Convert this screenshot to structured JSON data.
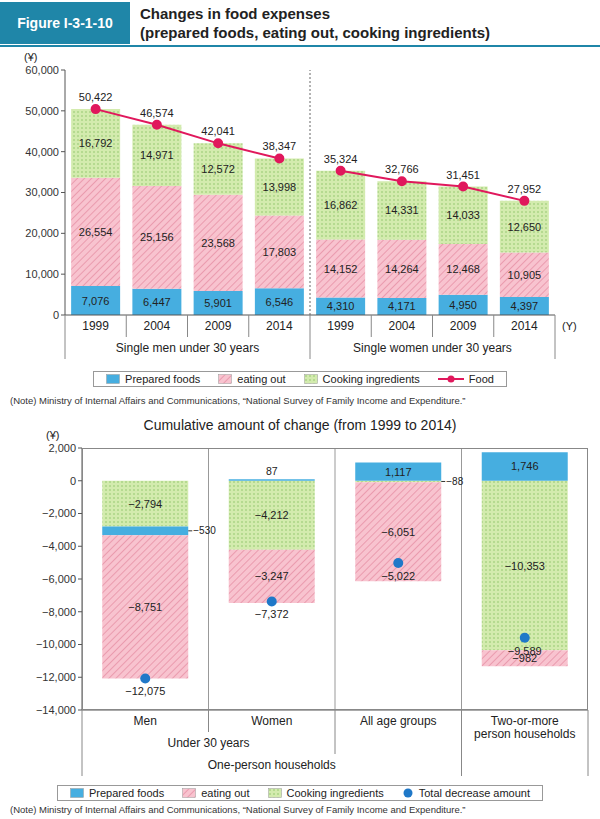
{
  "figure": {
    "label": "Figure I-3-1-10",
    "title": [
      "Changes in food expenses",
      "(prepared foods, eating out, cooking ingredients)"
    ]
  },
  "chart_data": [
    {
      "type": "bar",
      "stacked": true,
      "data_labels": true,
      "y_label": "(¥)",
      "x_label": "(Y)",
      "categories": [
        "1999",
        "2004",
        "2009",
        "2014",
        "1999",
        "2004",
        "2009",
        "2014"
      ],
      "groups": [
        {
          "label": "Single men under 30 years",
          "start": 0,
          "size": 4,
          "level": 1
        },
        {
          "label": "Single women under 30 years",
          "start": 4,
          "size": 4,
          "level": 1
        }
      ],
      "ylim": [
        0,
        60000
      ],
      "yticks": [
        0,
        {
          "value": 10000,
          "label": "10,000"
        },
        {
          "value": 20000,
          "label": "20,000"
        },
        {
          "value": 30000,
          "label": "30,000"
        },
        {
          "value": 40000,
          "label": "40,000"
        },
        {
          "value": 50000,
          "label": "50,000"
        },
        {
          "value": 60000,
          "label": "60,000"
        }
      ],
      "series": [
        {
          "name": "Prepared foods",
          "type": "bar",
          "color": "#46aee0",
          "values": [
            7076,
            6447,
            5901,
            6546,
            4310,
            4171,
            4950,
            4397
          ],
          "value_labels": [
            "7,076",
            "6,447",
            "5,901",
            "6,546",
            "4,310",
            "4,171",
            "4,950",
            "4,397"
          ]
        },
        {
          "name": "eating out",
          "type": "bar",
          "color": "#f8c3cf",
          "values": [
            26554,
            25156,
            23568,
            17803,
            14152,
            14264,
            12468,
            10905
          ],
          "value_labels": [
            "26,554",
            "25,156",
            "23,568",
            "17,803",
            "14,152",
            "14,264",
            "12,468",
            "10,905"
          ]
        },
        {
          "name": "Cooking ingredients",
          "type": "bar",
          "color": "#d3ebae",
          "values": [
            16792,
            14971,
            12572,
            13998,
            16862,
            14331,
            14033,
            12650
          ],
          "value_labels": [
            "16,792",
            "14,971",
            "12,572",
            "13,998",
            "16,862",
            "14,331",
            "14,033",
            "12,650"
          ]
        },
        {
          "name": "Food",
          "type": "line",
          "color": "#e0185c",
          "marker": "circle",
          "values": [
            50422,
            46574,
            42041,
            38347,
            35324,
            32766,
            31451,
            27952
          ],
          "value_labels": [
            "50,422",
            "46,574",
            "42,041",
            "38,347",
            "35,324",
            "32,766",
            "31,451",
            "27,952"
          ]
        }
      ],
      "note": "(Note)  Ministry of Internal Affairs and Communications, “National Survey of Family Income and Expenditure.”"
    },
    {
      "type": "bar",
      "stacked": true,
      "data_labels": true,
      "title": "Cumulative amount of change (from 1999 to 2014)",
      "y_label": "(¥)",
      "categories": [
        "Men",
        "Women",
        "All age groups",
        "Two-or-more person households"
      ],
      "groups": [
        {
          "label": "Under 30 years",
          "start": 0,
          "size": 2,
          "level": 1
        },
        {
          "label": "One-person households",
          "start": 0,
          "size": 3,
          "level": 2
        }
      ],
      "ylim": [
        -14000,
        2000
      ],
      "yticks": [
        {
          "value": 2000,
          "label": "2,000"
        },
        0,
        {
          "value": -2000,
          "label": "−2,000"
        },
        {
          "value": -4000,
          "label": "−4,000"
        },
        {
          "value": -6000,
          "label": "−6,000"
        },
        {
          "value": -8000,
          "label": "−8,000"
        },
        {
          "value": -10000,
          "label": "−10,000"
        },
        {
          "value": -12000,
          "label": "−12,000"
        },
        {
          "value": -14000,
          "label": "−14,000"
        }
      ],
      "series": [
        {
          "name": "Prepared foods",
          "type": "bar",
          "color": "#46aee0",
          "values": [
            -530,
            87,
            1117,
            1746
          ],
          "value_labels": [
            "−530",
            "87",
            "1,117",
            "1,746"
          ]
        },
        {
          "name": "eating out",
          "type": "bar",
          "color": "#f8c3cf",
          "values": [
            -8751,
            -3247,
            -6051,
            -982
          ],
          "value_labels": [
            "−8,751",
            "−3,247",
            "−6,051",
            "−982"
          ]
        },
        {
          "name": "Cooking ingredients",
          "type": "bar",
          "color": "#d3ebae",
          "values": [
            -2794,
            -4212,
            -88,
            -10353
          ],
          "value_labels": [
            "−2,794",
            "−4,212",
            "−88",
            "−10,353"
          ]
        },
        {
          "name": "Total decrease amount",
          "type": "scatter",
          "color": "#1f78c8",
          "marker": "circle",
          "values": [
            -12075,
            -7372,
            -5022,
            -9589
          ],
          "value_labels": [
            "−12,075",
            "−7,372",
            "−5,022",
            "−9,589"
          ]
        }
      ],
      "note": "(Note)  Ministry of Internal Affairs and Communications, “National Survey of Family Income and Expenditure.”"
    }
  ]
}
